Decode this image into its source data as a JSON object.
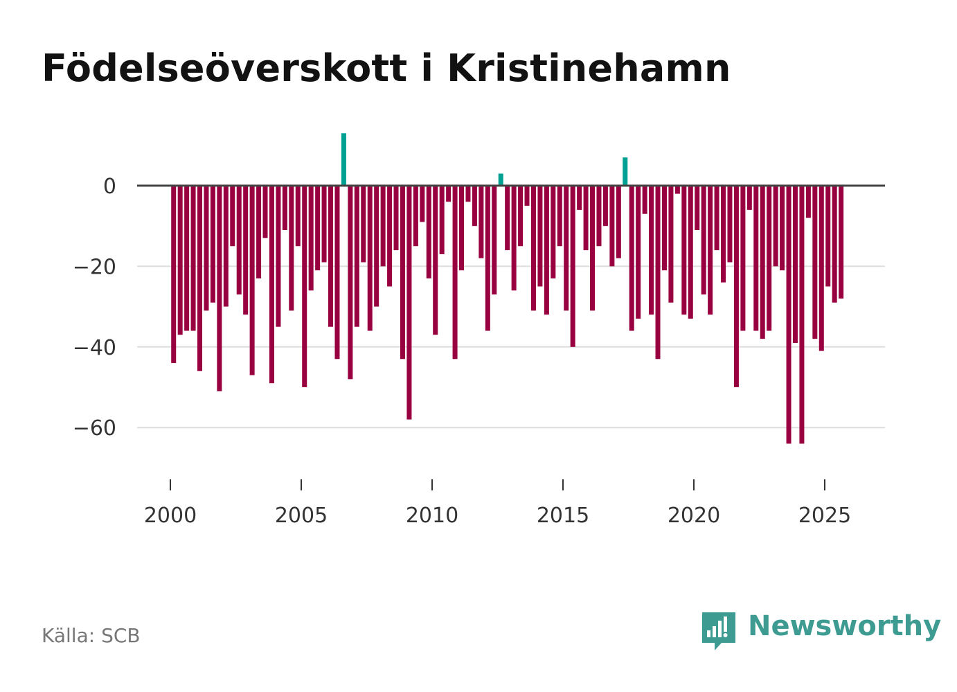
{
  "title": "Födelseöverskott i Kristinehamn",
  "source": "Källa: SCB",
  "brand": {
    "name": "Newsworthy",
    "icon": "newsworthy-chart-logo-icon",
    "color": "#3e9b92"
  },
  "colors": {
    "positive": "#00a193",
    "negative": "#98003f",
    "zero_line": "#444444",
    "grid": "#dddddd",
    "text": "#333333"
  },
  "chart_data": {
    "type": "bar",
    "title": "Födelseöverskott i Kristinehamn",
    "xlabel": "",
    "ylabel": "",
    "ylim": [
      -75,
      15
    ],
    "xlim": [
      1999.5,
      2027.25
    ],
    "grid": true,
    "yticks": [
      0,
      -20,
      -40,
      -60
    ],
    "ytick_labels": [
      "0",
      "−20",
      "−40",
      "−60"
    ],
    "xticks": [
      2000,
      2005,
      2010,
      2015,
      2020,
      2025
    ],
    "xtick_labels": [
      "2000",
      "2005",
      "2010",
      "2015",
      "2020",
      "2025"
    ],
    "period_step": 0.25,
    "x_start": 2000.125,
    "series": [
      {
        "name": "Födelseöverskott",
        "values": [
          -44,
          -37,
          -36,
          -36,
          -46,
          -31,
          -29,
          -51,
          -30,
          -15,
          -27,
          -32,
          -47,
          -23,
          -13,
          -49,
          -35,
          -11,
          -31,
          -15,
          -50,
          -26,
          -21,
          -19,
          -35,
          -43,
          13,
          -48,
          -35,
          -19,
          -36,
          -30,
          -20,
          -25,
          -16,
          -43,
          -58,
          -15,
          -9,
          -23,
          -37,
          -17,
          -4,
          -43,
          -21,
          -4,
          -10,
          -18,
          -36,
          -27,
          3,
          -16,
          -26,
          -15,
          -5,
          -31,
          -25,
          -32,
          -23,
          -15,
          -31,
          -40,
          -6,
          -16,
          -31,
          -15,
          -10,
          -20,
          -18,
          7,
          -36,
          -33,
          -7,
          -32,
          -43,
          -21,
          -29,
          -2,
          -32,
          -33,
          -11,
          -27,
          -32,
          -16,
          -24,
          -19,
          -50,
          -36,
          -6,
          -36,
          -38,
          -36,
          -20,
          -21,
          -64,
          -39,
          -64,
          -8,
          -38,
          -41,
          -25,
          -29,
          -28
        ]
      }
    ]
  }
}
